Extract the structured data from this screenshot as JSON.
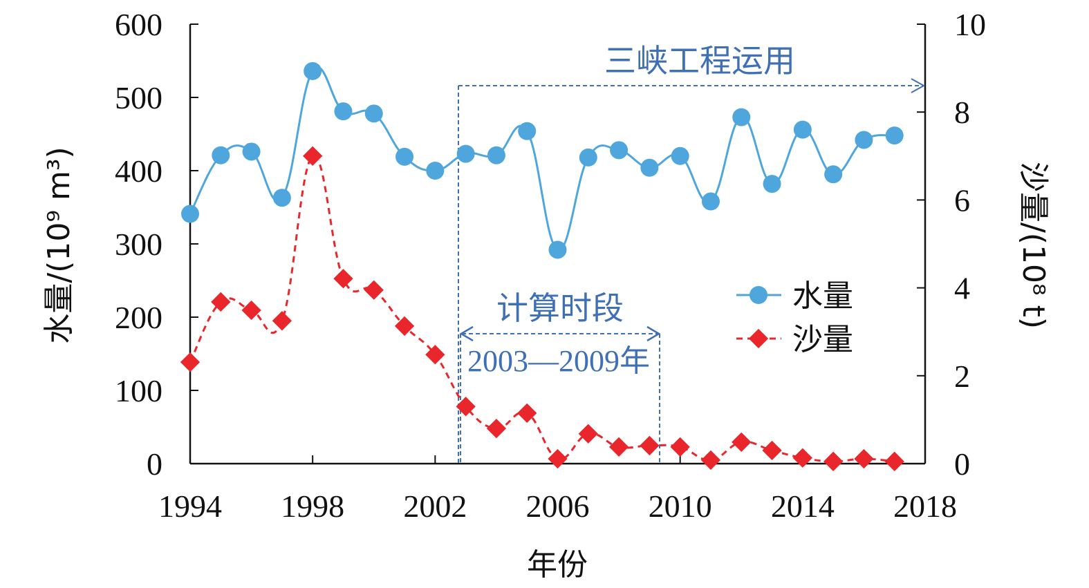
{
  "chart_data": {
    "type": "line",
    "xlabel": "年份",
    "ylabel_left": "水量/(10⁹ m³)",
    "ylabel_right": "沙量/(10⁸ t)",
    "xlim": [
      1994,
      2018
    ],
    "ylim_left": [
      0,
      600
    ],
    "ylim_right": [
      0,
      10
    ],
    "x_ticks": [
      "1994",
      "1998",
      "2002",
      "2006",
      "2010",
      "2014",
      "2018"
    ],
    "y_left_ticks": [
      "0",
      "100",
      "200",
      "300",
      "400",
      "500",
      "600"
    ],
    "y_right_ticks": [
      "0",
      "2",
      "4",
      "6",
      "8",
      "10"
    ],
    "grid": false,
    "legend_position": "right-center",
    "x": [
      1994,
      1995,
      1996,
      1997,
      1998,
      1999,
      2000,
      2001,
      2002,
      2003,
      2004,
      2005,
      2006,
      2007,
      2008,
      2009,
      2010,
      2011,
      2012,
      2013,
      2014,
      2015,
      2016,
      2017
    ],
    "series": [
      {
        "name": "水量",
        "axis": "left",
        "color": "#4ea6dc",
        "marker": "circle",
        "line": "solid-smooth",
        "values": [
          341,
          421,
          426,
          363,
          536,
          481,
          478,
          419,
          400,
          423,
          421,
          454,
          292,
          418,
          428,
          404,
          420,
          358,
          473,
          382,
          456,
          395,
          442,
          448
        ]
      },
      {
        "name": "沙量",
        "axis": "right",
        "color": "#e8262b",
        "marker": "diamond",
        "line": "dashed",
        "values": [
          2.31,
          3.68,
          3.49,
          3.25,
          7.0,
          4.21,
          3.95,
          3.13,
          2.48,
          1.3,
          0.8,
          1.15,
          0.11,
          0.68,
          0.38,
          0.41,
          0.38,
          0.08,
          0.49,
          0.3,
          0.13,
          0.05,
          0.11,
          0.05
        ]
      }
    ],
    "annotations": {
      "tgp_label": "三峡工程运用",
      "period_label": "计算时段",
      "period_range": "2003—2009年",
      "annotation_color": "#3f6fb5"
    }
  }
}
